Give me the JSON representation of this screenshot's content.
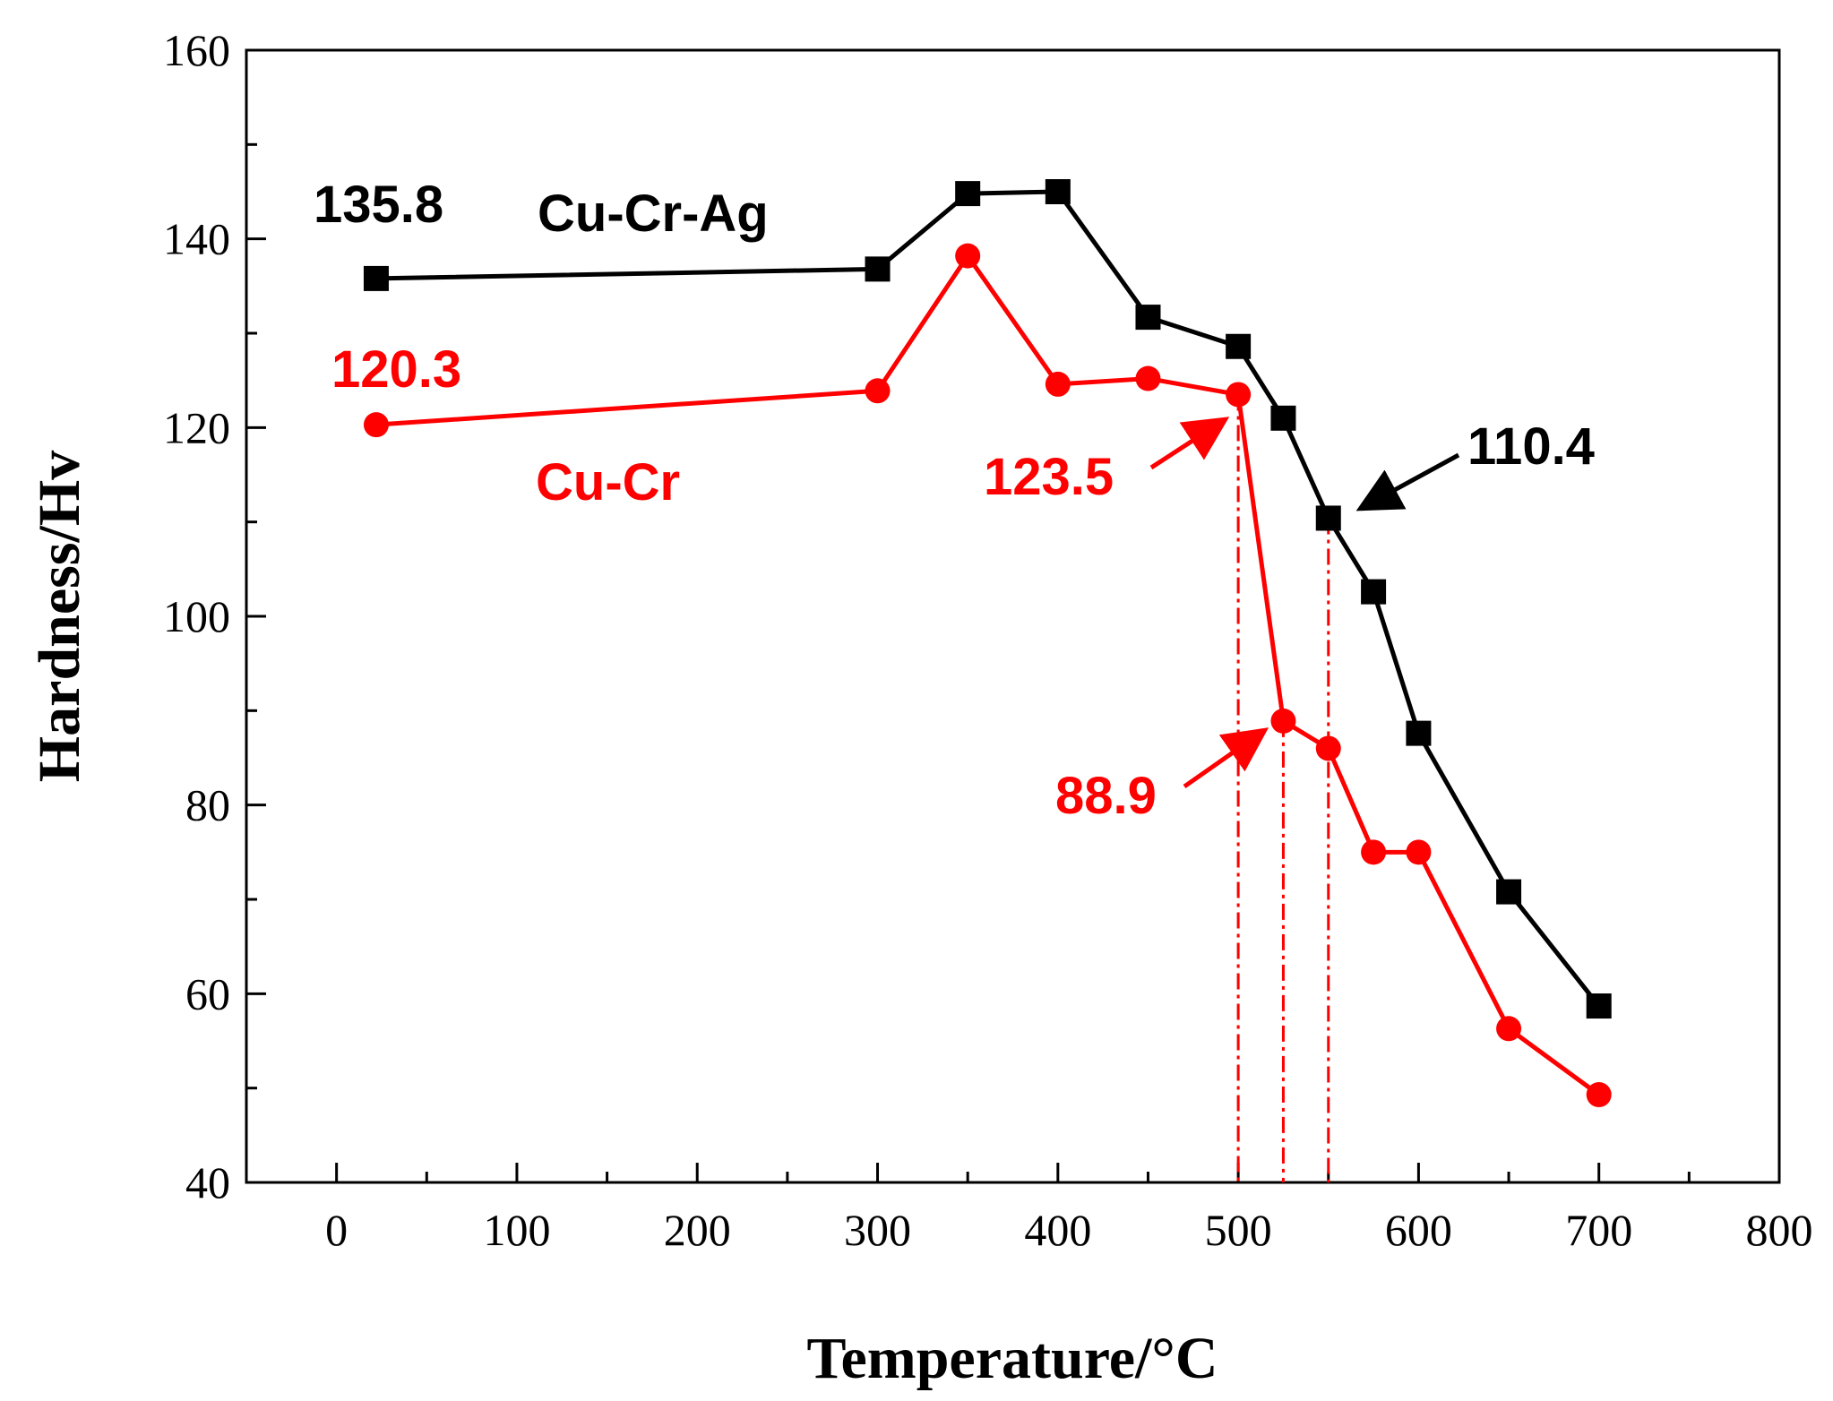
{
  "chart_data": {
    "type": "line",
    "title": "",
    "xlabel": "Temperature/°C",
    "ylabel": "Hardness/Hv",
    "xlim": [
      -50,
      800
    ],
    "ylim": [
      40,
      160
    ],
    "xticks": [
      0,
      100,
      200,
      300,
      400,
      500,
      600,
      700,
      800
    ],
    "yticks": [
      40,
      60,
      80,
      100,
      120,
      140,
      160
    ],
    "xtick_labels": [
      "0",
      "100",
      "200",
      "300",
      "400",
      "500",
      "600",
      "700",
      "800"
    ],
    "ytick_labels": [
      "40",
      "60",
      "80",
      "100",
      "120",
      "140",
      "160"
    ],
    "grid": false,
    "series": [
      {
        "name": "Cu-Cr-Ag",
        "color": "#000000",
        "marker": "square",
        "x": [
          22,
          300,
          350,
          400,
          450,
          500,
          525,
          550,
          575,
          600,
          650,
          700
        ],
        "y": [
          135.8,
          136.8,
          144.8,
          145.0,
          131.7,
          128.6,
          121.0,
          110.4,
          102.6,
          87.6,
          70.8,
          58.7
        ]
      },
      {
        "name": "Cu-Cr",
        "color": "#ff0000",
        "marker": "circle",
        "x": [
          22,
          300,
          350,
          400,
          450,
          500,
          525,
          550,
          575,
          600,
          650,
          700
        ],
        "y": [
          120.3,
          123.9,
          138.2,
          124.6,
          125.2,
          123.5,
          88.9,
          86.0,
          75.0,
          75.0,
          56.3,
          49.3
        ]
      }
    ],
    "annotations": [
      {
        "id": "ag-start",
        "text": "135.8",
        "color": "#000000"
      },
      {
        "id": "ag-name",
        "text": "Cu-Cr-Ag",
        "color": "#000000"
      },
      {
        "id": "cr-start",
        "text": "120.3",
        "color": "#ff0000"
      },
      {
        "id": "cr-name",
        "text": "Cu-Cr",
        "color": "#ff0000"
      },
      {
        "id": "cr-500",
        "text": "123.5",
        "color": "#ff0000"
      },
      {
        "id": "ag-550",
        "text": "110.4",
        "color": "#000000"
      },
      {
        "id": "cr-525",
        "text": "88.9",
        "color": "#ff0000"
      }
    ],
    "reference_lines_x": [
      500,
      525,
      550
    ]
  }
}
